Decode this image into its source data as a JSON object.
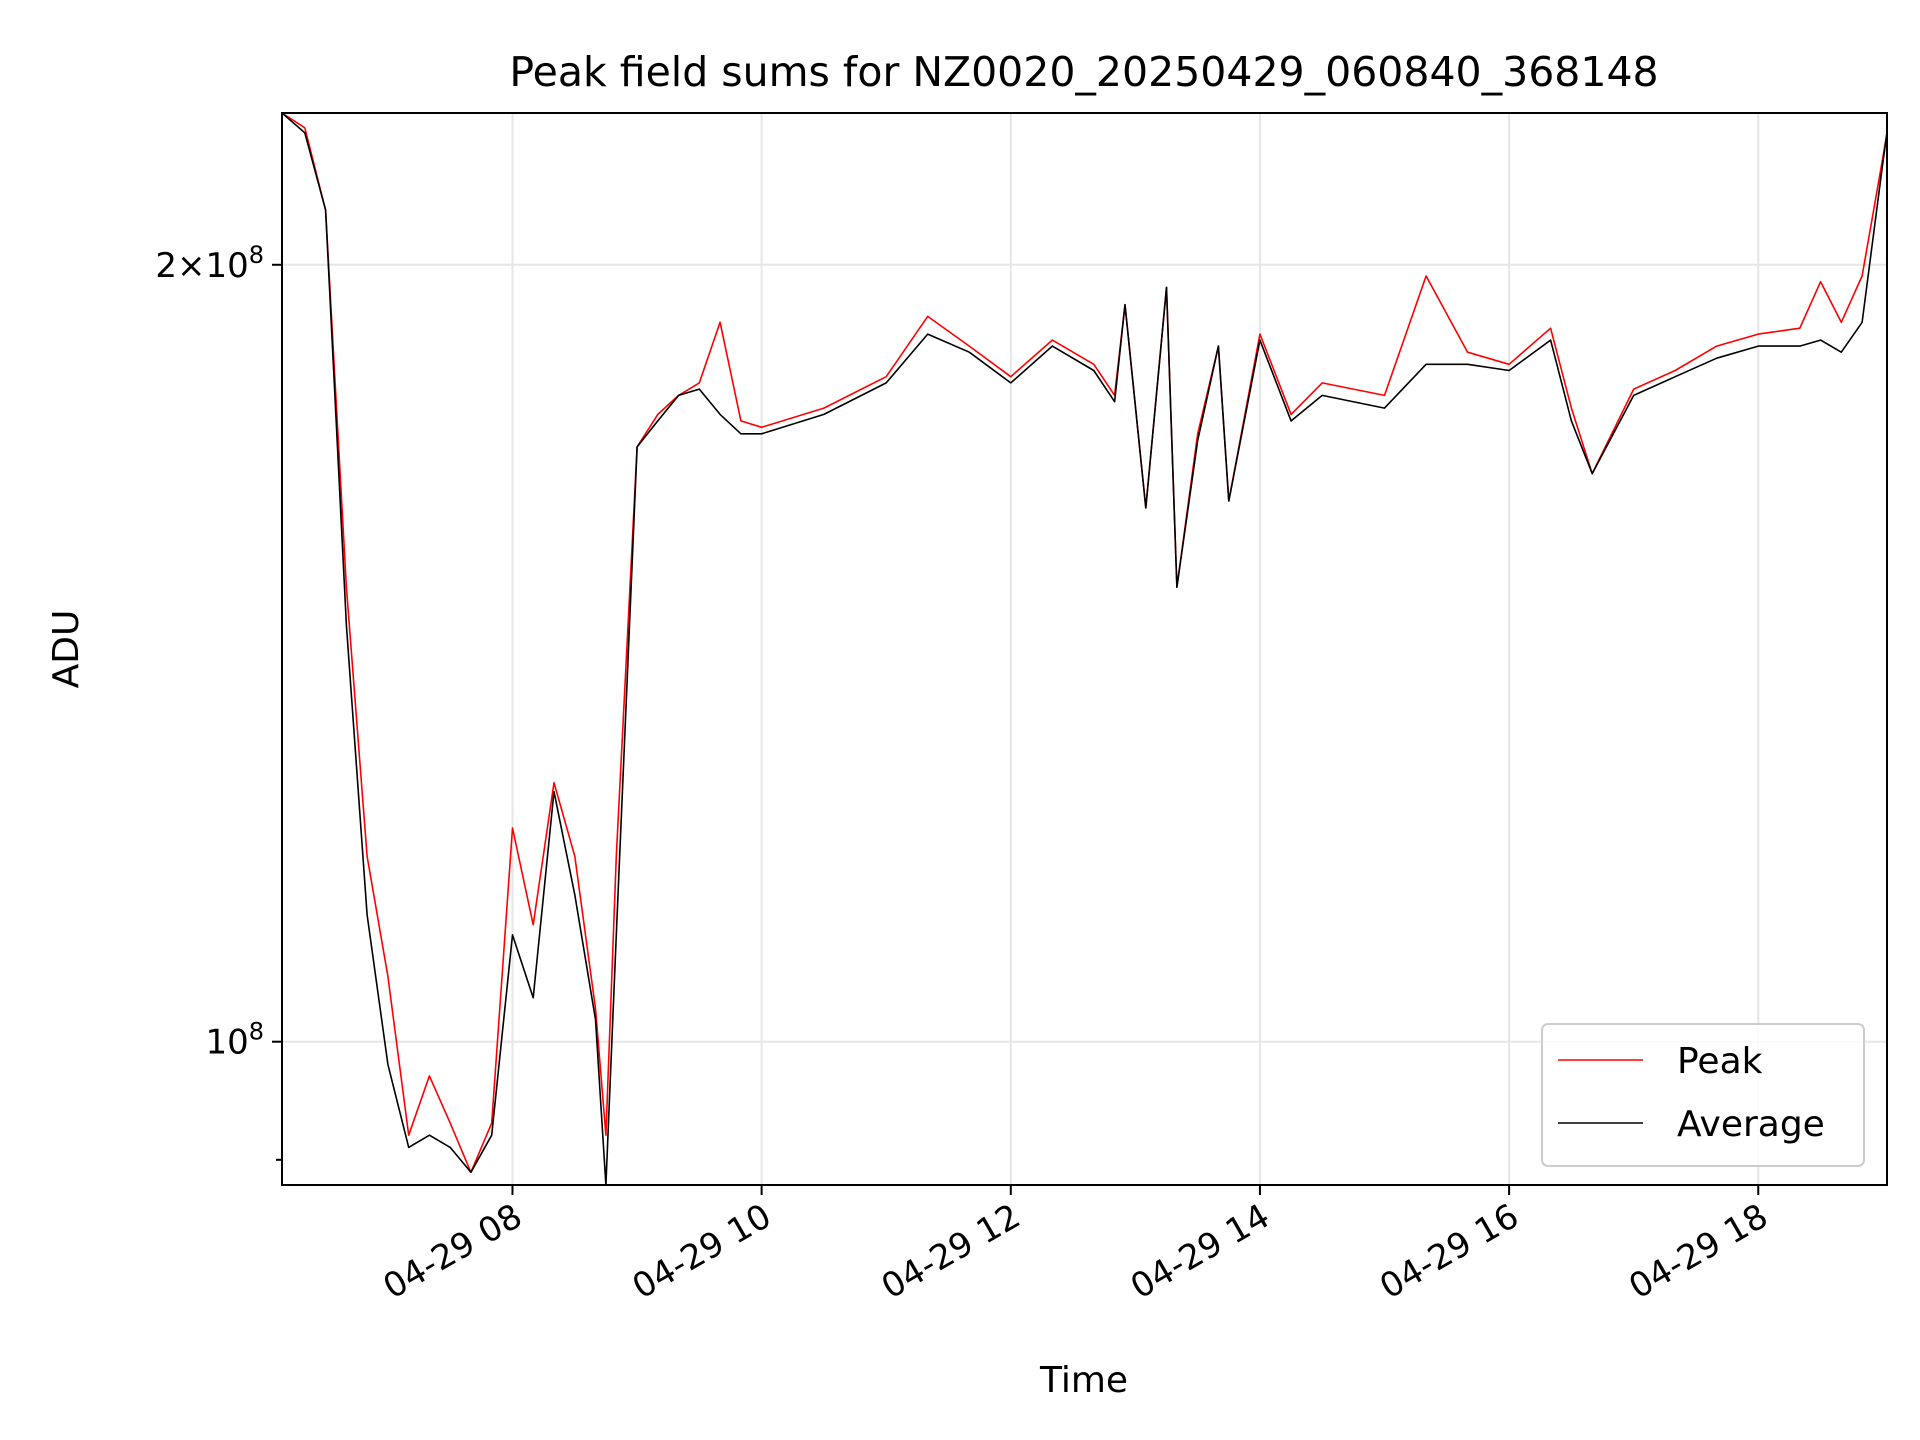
{
  "chart_data": {
    "type": "line",
    "title": "Peak field sums for NZ0020_20250429_060840_368148",
    "xlabel": "Time",
    "ylabel": "ADU",
    "y_scale": "log",
    "grid": true,
    "legend_placement": "lower-right",
    "xlim": [
      "2025-04-29 06:09",
      "2025-04-29 19:02"
    ],
    "ylim": [
      88000000,
      229000000
    ],
    "x_ticks": [
      {
        "value": "2025-04-29 08:00",
        "label": "04-29 08"
      },
      {
        "value": "2025-04-29 10:00",
        "label": "04-29 10"
      },
      {
        "value": "2025-04-29 12:00",
        "label": "04-29 12"
      },
      {
        "value": "2025-04-29 14:00",
        "label": "04-29 14"
      },
      {
        "value": "2025-04-29 16:00",
        "label": "04-29 16"
      },
      {
        "value": "2025-04-29 18:00",
        "label": "04-29 18"
      }
    ],
    "y_major_ticks": [
      {
        "value": 100000000,
        "label_base": "10",
        "label_exp": "8",
        "label_coef": ""
      },
      {
        "value": 200000000,
        "label_base": "10",
        "label_exp": "8",
        "label_coef": "2×"
      }
    ],
    "y_minor_ticks": [
      90000000
    ],
    "series": [
      {
        "name": "Peak",
        "color": "#ff0000",
        "x": [
          "2025-04-29 06:09",
          "2025-04-29 06:20",
          "2025-04-29 06:30",
          "2025-04-29 06:40",
          "2025-04-29 06:50",
          "2025-04-29 07:00",
          "2025-04-29 07:10",
          "2025-04-29 07:20",
          "2025-04-29 07:30",
          "2025-04-29 07:40",
          "2025-04-29 07:50",
          "2025-04-29 08:00",
          "2025-04-29 08:10",
          "2025-04-29 08:20",
          "2025-04-29 08:30",
          "2025-04-29 08:40",
          "2025-04-29 08:45",
          "2025-04-29 08:50",
          "2025-04-29 09:00",
          "2025-04-29 09:10",
          "2025-04-29 09:20",
          "2025-04-29 09:30",
          "2025-04-29 09:40",
          "2025-04-29 09:50",
          "2025-04-29 10:00",
          "2025-04-29 10:30",
          "2025-04-29 11:00",
          "2025-04-29 11:20",
          "2025-04-29 11:40",
          "2025-04-29 12:00",
          "2025-04-29 12:20",
          "2025-04-29 12:40",
          "2025-04-29 12:50",
          "2025-04-29 12:55",
          "2025-04-29 13:05",
          "2025-04-29 13:15",
          "2025-04-29 13:20",
          "2025-04-29 13:30",
          "2025-04-29 13:40",
          "2025-04-29 13:45",
          "2025-04-29 14:00",
          "2025-04-29 14:15",
          "2025-04-29 14:30",
          "2025-04-29 15:00",
          "2025-04-29 15:20",
          "2025-04-29 15:40",
          "2025-04-29 16:00",
          "2025-04-29 16:20",
          "2025-04-29 16:30",
          "2025-04-29 16:40",
          "2025-04-29 17:00",
          "2025-04-29 17:20",
          "2025-04-29 17:40",
          "2025-04-29 18:00",
          "2025-04-29 18:20",
          "2025-04-29 18:30",
          "2025-04-29 18:40",
          "2025-04-29 18:50",
          "2025-04-29 19:00",
          "2025-04-29 19:02"
        ],
        "values": [
          229000000,
          226000000,
          210000000,
          150000000,
          118000000,
          106000000,
          92000000,
          97000000,
          93000000,
          89000000,
          93000000,
          121000000,
          111000000,
          126000000,
          118000000,
          103000000,
          92000000,
          118000000,
          170000000,
          175000000,
          178000000,
          180000000,
          190000000,
          174000000,
          173000000,
          176000000,
          181000000,
          191000000,
          186000000,
          181000000,
          187000000,
          183000000,
          178000000,
          193000000,
          161000000,
          196000000,
          150000000,
          172000000,
          186000000,
          162000000,
          188000000,
          175000000,
          180000000,
          178000000,
          198000000,
          185000000,
          183000000,
          189000000,
          176000000,
          166000000,
          179000000,
          182000000,
          186000000,
          188000000,
          189000000,
          197000000,
          190000000,
          198000000,
          220000000,
          225000000
        ]
      },
      {
        "name": "Average",
        "color": "#000000",
        "x": [
          "2025-04-29 06:09",
          "2025-04-29 06:20",
          "2025-04-29 06:30",
          "2025-04-29 06:40",
          "2025-04-29 06:50",
          "2025-04-29 07:00",
          "2025-04-29 07:10",
          "2025-04-29 07:20",
          "2025-04-29 07:30",
          "2025-04-29 07:40",
          "2025-04-29 07:50",
          "2025-04-29 08:00",
          "2025-04-29 08:10",
          "2025-04-29 08:20",
          "2025-04-29 08:30",
          "2025-04-29 08:40",
          "2025-04-29 08:45",
          "2025-04-29 08:50",
          "2025-04-29 09:00",
          "2025-04-29 09:10",
          "2025-04-29 09:20",
          "2025-04-29 09:30",
          "2025-04-29 09:40",
          "2025-04-29 09:50",
          "2025-04-29 10:00",
          "2025-04-29 10:30",
          "2025-04-29 11:00",
          "2025-04-29 11:20",
          "2025-04-29 11:40",
          "2025-04-29 12:00",
          "2025-04-29 12:20",
          "2025-04-29 12:40",
          "2025-04-29 12:50",
          "2025-04-29 12:55",
          "2025-04-29 13:05",
          "2025-04-29 13:15",
          "2025-04-29 13:20",
          "2025-04-29 13:30",
          "2025-04-29 13:40",
          "2025-04-29 13:45",
          "2025-04-29 14:00",
          "2025-04-29 14:15",
          "2025-04-29 14:30",
          "2025-04-29 15:00",
          "2025-04-29 15:20",
          "2025-04-29 15:40",
          "2025-04-29 16:00",
          "2025-04-29 16:20",
          "2025-04-29 16:30",
          "2025-04-29 16:40",
          "2025-04-29 17:00",
          "2025-04-29 17:20",
          "2025-04-29 17:40",
          "2025-04-29 18:00",
          "2025-04-29 18:20",
          "2025-04-29 18:30",
          "2025-04-29 18:40",
          "2025-04-29 18:50",
          "2025-04-29 19:00",
          "2025-04-29 19:02"
        ],
        "values": [
          229000000,
          225000000,
          210000000,
          145000000,
          112000000,
          98000000,
          91000000,
          92000000,
          91000000,
          89000000,
          92000000,
          110000000,
          104000000,
          125000000,
          114000000,
          102000000,
          88000000,
          110000000,
          170000000,
          174000000,
          178000000,
          179000000,
          175000000,
          172000000,
          172000000,
          175000000,
          180000000,
          188000000,
          185000000,
          180000000,
          186000000,
          182000000,
          177000000,
          193000000,
          161000000,
          196000000,
          150000000,
          171000000,
          186000000,
          162000000,
          187000000,
          174000000,
          178000000,
          176000000,
          183000000,
          183000000,
          182000000,
          187000000,
          174000000,
          166000000,
          178000000,
          181000000,
          184000000,
          186000000,
          186000000,
          187000000,
          185000000,
          190000000,
          219000000,
          225000000
        ]
      }
    ]
  }
}
